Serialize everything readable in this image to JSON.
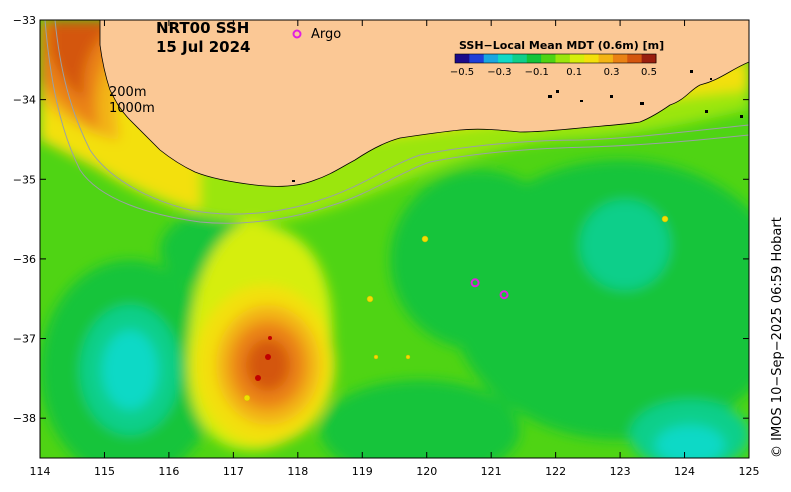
{
  "product": "NRT00 SSH",
  "date": "15 Jul 2024",
  "legend_marker_label": "Argo",
  "legend_marker_color": "#e020e0",
  "contour_labels": {
    "shelf": "200m",
    "slope": "1000m"
  },
  "colorbar": {
    "title": "SSH−Local Mean MDT (0.6m) [m]",
    "ticks": [
      "−0.5",
      "−0.3",
      "−0.1",
      "0.1",
      "0.3",
      "0.5"
    ],
    "colors": [
      "#1a0a8a",
      "#1f3fd8",
      "#1aa7e0",
      "#10d9c6",
      "#0fcf8a",
      "#12c43a",
      "#4fd414",
      "#9be60c",
      "#d6ee0a",
      "#f3e00c",
      "#f3b414",
      "#ea8214",
      "#d4560e",
      "#9a1e0e"
    ]
  },
  "credit": "© IMOS 10−Sep−2025 06:59 Hobart",
  "land_color": "#fbc895",
  "axes": {
    "x_ticks": [
      "114",
      "115",
      "116",
      "117",
      "118",
      "119",
      "120",
      "121",
      "122",
      "123",
      "124",
      "125"
    ],
    "y_ticks": [
      "−33",
      "−34",
      "−35",
      "−36",
      "−37",
      "−38"
    ],
    "xlim": [
      114,
      125
    ],
    "ylim": [
      -38.5,
      -33
    ]
  },
  "chart_data": {
    "type": "heatmap",
    "title": "NRT00 SSH 15 Jul 2024",
    "xlabel": "",
    "ylabel": "",
    "xlim": [
      114,
      125
    ],
    "ylim": [
      -38.5,
      -33
    ],
    "value_range": [
      -0.5,
      0.5
    ],
    "argo_floats": [
      {
        "lon": 120.75,
        "lat": -36.3
      },
      {
        "lon": 121.2,
        "lat": -36.45
      }
    ],
    "features": [
      {
        "name": "warm eddy",
        "lon": 117.5,
        "lat": -37.4,
        "ssh": 0.5
      },
      {
        "name": "cold eddy",
        "lon": 115.4,
        "lat": -37.4,
        "ssh": -0.15
      },
      {
        "name": "cold eddy",
        "lon": 124.0,
        "lat": -38.3,
        "ssh": -0.15
      },
      {
        "name": "cold eddy",
        "lon": 123.1,
        "lat": -36.0,
        "ssh": 0.0
      }
    ]
  }
}
